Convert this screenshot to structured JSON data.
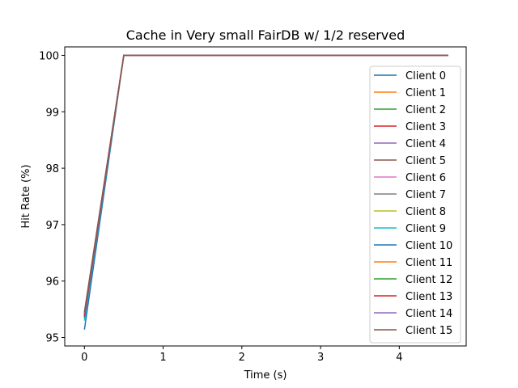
{
  "chart_data": {
    "type": "line",
    "title": "Cache in Very small FairDB w/ 1/2 reserved",
    "xlabel": "Time (s)",
    "ylabel": "Hit Rate (%)",
    "xlim": [
      -0.25,
      4.85
    ],
    "ylim": [
      94.85,
      100.15
    ],
    "xticks": [
      0,
      1,
      2,
      3,
      4
    ],
    "yticks": [
      95,
      96,
      97,
      98,
      99,
      100
    ],
    "grid": false,
    "legend_position": "right",
    "series": [
      {
        "name": "Client 0",
        "color": "#1f77b4",
        "x": [
          0,
          0.5,
          4.62
        ],
        "y": [
          95.14,
          100,
          100
        ]
      },
      {
        "name": "Client 1",
        "color": "#ff7f0e",
        "x": [
          0,
          0.5,
          4.62
        ],
        "y": [
          95.38,
          100,
          100
        ]
      },
      {
        "name": "Client 2",
        "color": "#2ca02c",
        "x": [
          0,
          0.5,
          4.62
        ],
        "y": [
          95.4,
          100,
          100
        ]
      },
      {
        "name": "Client 3",
        "color": "#d62728",
        "x": [
          0,
          0.5,
          4.62
        ],
        "y": [
          95.36,
          100,
          100
        ]
      },
      {
        "name": "Client 4",
        "color": "#9467bd",
        "x": [
          0,
          0.5,
          4.62
        ],
        "y": [
          95.42,
          100,
          100
        ]
      },
      {
        "name": "Client 5",
        "color": "#8c564b",
        "x": [
          0,
          0.5,
          4.62
        ],
        "y": [
          95.44,
          100,
          100
        ]
      },
      {
        "name": "Client 6",
        "color": "#e377c2",
        "x": [
          0,
          0.5,
          4.62
        ],
        "y": [
          95.41,
          100,
          100
        ]
      },
      {
        "name": "Client 7",
        "color": "#7f7f7f",
        "x": [
          0,
          0.5,
          4.62
        ],
        "y": [
          95.39,
          100,
          100
        ]
      },
      {
        "name": "Client 8",
        "color": "#bcbd22",
        "x": [
          0,
          0.5,
          4.62
        ],
        "y": [
          95.37,
          100,
          100
        ]
      },
      {
        "name": "Client 9",
        "color": "#17becf",
        "x": [
          0,
          0.5,
          4.62
        ],
        "y": [
          95.3,
          100,
          100
        ]
      },
      {
        "name": "Client 10",
        "color": "#1f77b4",
        "x": [
          0,
          0.5,
          4.62
        ],
        "y": [
          95.35,
          100,
          100
        ]
      },
      {
        "name": "Client 11",
        "color": "#ff7f0e",
        "x": [
          0,
          0.5,
          4.62
        ],
        "y": [
          95.4,
          100,
          100
        ]
      },
      {
        "name": "Client 12",
        "color": "#2ca02c",
        "x": [
          0,
          0.5,
          4.62
        ],
        "y": [
          95.42,
          100,
          100
        ]
      },
      {
        "name": "Client 13",
        "color": "#d62728",
        "x": [
          0,
          0.5,
          4.62
        ],
        "y": [
          95.38,
          100,
          100
        ]
      },
      {
        "name": "Client 14",
        "color": "#9467bd",
        "x": [
          0,
          0.5,
          4.62
        ],
        "y": [
          95.43,
          100,
          100
        ]
      },
      {
        "name": "Client 15",
        "color": "#8c564b",
        "x": [
          0,
          0.5,
          4.62
        ],
        "y": [
          95.45,
          100,
          100
        ]
      }
    ]
  }
}
